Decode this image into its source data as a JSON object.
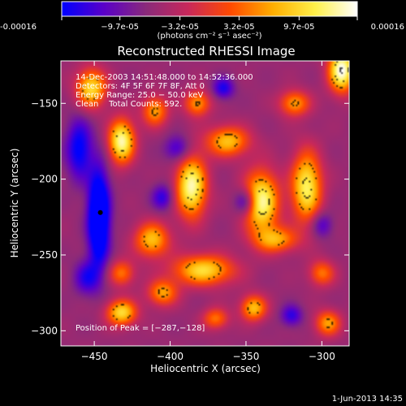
{
  "chart_data": {
    "type": "heatmap",
    "title": "Reconstructed RHESSI Image",
    "xlabel": "Heliocentric X (arcsec)",
    "ylabel": "Heliocentric Y (arcsec)",
    "xlim": [
      -472,
      -282
    ],
    "ylim": [
      -310,
      -122
    ],
    "xticks": [
      -450,
      -400,
      -350,
      -300
    ],
    "xtick_labels": [
      "−450",
      "−400",
      "−350",
      "−300"
    ],
    "yticks": [
      -300,
      -250,
      -200,
      -150
    ],
    "ytick_labels": [
      "−300",
      "−250",
      "−200",
      "−150"
    ],
    "colorbar": {
      "range": [
        -0.00016,
        0.00016
      ],
      "ticks": [
        -0.00016,
        -9.7e-05,
        -3.2e-05,
        3.2e-05,
        9.7e-05,
        0.00016
      ],
      "tick_labels": [
        "-0.00016",
        "−9.7e-05",
        "−3.2e-05",
        "3.2e-05",
        "9.7e-05",
        "0.00016"
      ],
      "unit_label": "(photons cm⁻² s⁻¹ asec⁻²)",
      "colormap": [
        "#0000ff",
        "#5a00c8",
        "#8a2a7a",
        "#c8285a",
        "#ff4a00",
        "#ffae00",
        "#fff04a",
        "#ffffff"
      ]
    },
    "annotations": {
      "time_range": "14-Dec-2003 14:51:48.000 to 14:52:36.000",
      "detectors": "Detectors: 4F 5F 6F 7F 8F, Att 0",
      "energy_range": "Energy Range: 25.0 − 50.0 keV",
      "clean_counts": "Clean    Total Counts: 592.",
      "peak_position": "Position of Peak = [−287,−128]"
    },
    "marker": {
      "x": -446,
      "y": -222
    },
    "blobs": [
      {
        "x": -452,
        "y": -140,
        "sx": 7,
        "sy": 9,
        "v": 0.8
      },
      {
        "x": -432,
        "y": -175,
        "sx": 6,
        "sy": 10,
        "v": 1.0
      },
      {
        "x": -410,
        "y": -155,
        "sx": 6,
        "sy": 7,
        "v": 0.6
      },
      {
        "x": -386,
        "y": -205,
        "sx": 7,
        "sy": 14,
        "v": 1.0
      },
      {
        "x": -382,
        "y": -150,
        "sx": 6,
        "sy": 6,
        "v": 0.6
      },
      {
        "x": -362,
        "y": -175,
        "sx": 10,
        "sy": 7,
        "v": 0.7
      },
      {
        "x": -318,
        "y": -150,
        "sx": 7,
        "sy": 6,
        "v": 0.6
      },
      {
        "x": -287,
        "y": -128,
        "sx": 6,
        "sy": 10,
        "v": 1.1
      },
      {
        "x": -340,
        "y": -215,
        "sx": 8,
        "sy": 14,
        "v": 1.0
      },
      {
        "x": -310,
        "y": -205,
        "sx": 7,
        "sy": 16,
        "v": 0.9
      },
      {
        "x": -412,
        "y": -240,
        "sx": 8,
        "sy": 8,
        "v": 0.7
      },
      {
        "x": -432,
        "y": -262,
        "sx": 6,
        "sy": 6,
        "v": 0.5
      },
      {
        "x": -378,
        "y": -260,
        "sx": 14,
        "sy": 7,
        "v": 0.8
      },
      {
        "x": -405,
        "y": -275,
        "sx": 7,
        "sy": 6,
        "v": 0.6
      },
      {
        "x": -432,
        "y": -288,
        "sx": 7,
        "sy": 6,
        "v": 0.8
      },
      {
        "x": -345,
        "y": -285,
        "sx": 6,
        "sy": 6,
        "v": 0.7
      },
      {
        "x": -330,
        "y": -240,
        "sx": 10,
        "sy": 6,
        "v": 0.6
      },
      {
        "x": -300,
        "y": -262,
        "sx": 6,
        "sy": 6,
        "v": 0.5
      },
      {
        "x": -296,
        "y": -295,
        "sx": 6,
        "sy": 6,
        "v": 0.6
      },
      {
        "x": -370,
        "y": -292,
        "sx": 6,
        "sy": 5,
        "v": 0.5
      },
      {
        "x": -447,
        "y": -225,
        "sx": 5,
        "sy": 22,
        "v": -0.95
      },
      {
        "x": -460,
        "y": -180,
        "sx": 6,
        "sy": 14,
        "v": -0.55
      },
      {
        "x": -455,
        "y": -265,
        "sx": 6,
        "sy": 8,
        "v": -0.4
      },
      {
        "x": -395,
        "y": -180,
        "sx": 6,
        "sy": 6,
        "v": -0.4
      },
      {
        "x": -350,
        "y": -215,
        "sx": 5,
        "sy": 6,
        "v": -0.5
      },
      {
        "x": -365,
        "y": -140,
        "sx": 5,
        "sy": 5,
        "v": -0.45
      },
      {
        "x": -320,
        "y": -290,
        "sx": 5,
        "sy": 5,
        "v": -0.4
      },
      {
        "x": -405,
        "y": -212,
        "sx": 5,
        "sy": 6,
        "v": -0.4
      },
      {
        "x": -300,
        "y": -230,
        "sx": 5,
        "sy": 6,
        "v": -0.35
      }
    ]
  },
  "footer": {
    "date": "1-Jun-2013 14:35"
  }
}
